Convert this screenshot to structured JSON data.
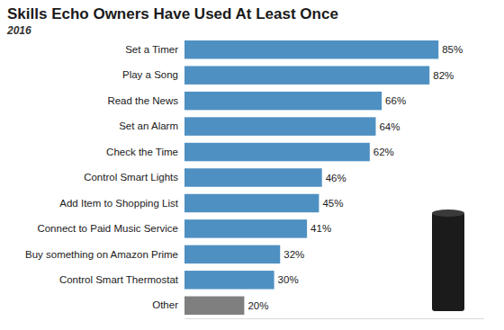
{
  "chart_data": {
    "type": "bar",
    "title": "Skills Echo Owners Have Used At Least Once",
    "subtitle": "2016",
    "orientation": "horizontal",
    "categories": [
      "Set a Timer",
      "Play a Song",
      "Read the News",
      "Set an Alarm",
      "Check the Time",
      "Control Smart Lights",
      "Add Item to Shopping List",
      "Connect to Paid Music Service",
      "Buy something on Amazon Prime",
      "Control Smart Thermostat",
      "Other"
    ],
    "values": [
      85,
      82,
      66,
      64,
      62,
      46,
      45,
      41,
      32,
      30,
      20
    ],
    "value_labels": [
      "85%",
      "82%",
      "66%",
      "64%",
      "62%",
      "46%",
      "45%",
      "41%",
      "32%",
      "30%",
      "20%"
    ],
    "colors": [
      "#4f90c2",
      "#4f90c2",
      "#4f90c2",
      "#4f90c2",
      "#4f90c2",
      "#4f90c2",
      "#4f90c2",
      "#4f90c2",
      "#4f90c2",
      "#4f90c2",
      "#7f7f7f"
    ],
    "xlim": [
      0,
      100
    ],
    "data_labels": true,
    "tick_labels": "y",
    "grid": false
  }
}
